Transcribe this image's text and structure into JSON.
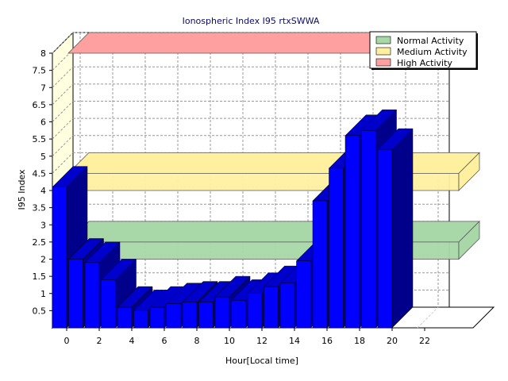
{
  "chart_data": {
    "type": "bar",
    "title": "Ionospheric Index I95 rtxSWWA",
    "xlabel": "Hour[Local time]",
    "ylabel": "I95 Index",
    "ylim": [
      0,
      8
    ],
    "yticks": [
      "0.5",
      "1",
      "1.5",
      "2",
      "2.5",
      "3",
      "3.5",
      "4",
      "4.5",
      "5",
      "5.5",
      "6",
      "6.5",
      "7",
      "7.5",
      "8"
    ],
    "xticks": [
      "0",
      "2",
      "4",
      "6",
      "8",
      "10",
      "12",
      "14",
      "16",
      "18",
      "20",
      "22"
    ],
    "x": [
      0,
      1,
      2,
      3,
      4,
      5,
      6,
      7,
      8,
      9,
      10,
      11,
      12,
      13,
      14,
      15,
      16,
      17,
      18,
      19,
      20
    ],
    "values": [
      4.1,
      2.0,
      1.9,
      1.4,
      0.6,
      0.5,
      0.6,
      0.7,
      0.75,
      0.75,
      0.9,
      0.8,
      1.0,
      1.2,
      1.3,
      1.95,
      3.7,
      4.65,
      5.6,
      5.75,
      5.2
    ],
    "grid": true,
    "legend_position": "top-right",
    "bands": [
      {
        "name": "Normal Activity",
        "from": 2,
        "to": 2.5,
        "color": "#a8d8a8"
      },
      {
        "name": "Medium Activity",
        "from": 4,
        "to": 4.5,
        "color": "#fff0a0"
      },
      {
        "name": "High Activity",
        "from": 8,
        "to": 8.5,
        "color": "#ffa0a0"
      }
    ],
    "bar_colors": {
      "front": "#0000ff",
      "top": "#0000cc",
      "side": "#00008b"
    }
  }
}
